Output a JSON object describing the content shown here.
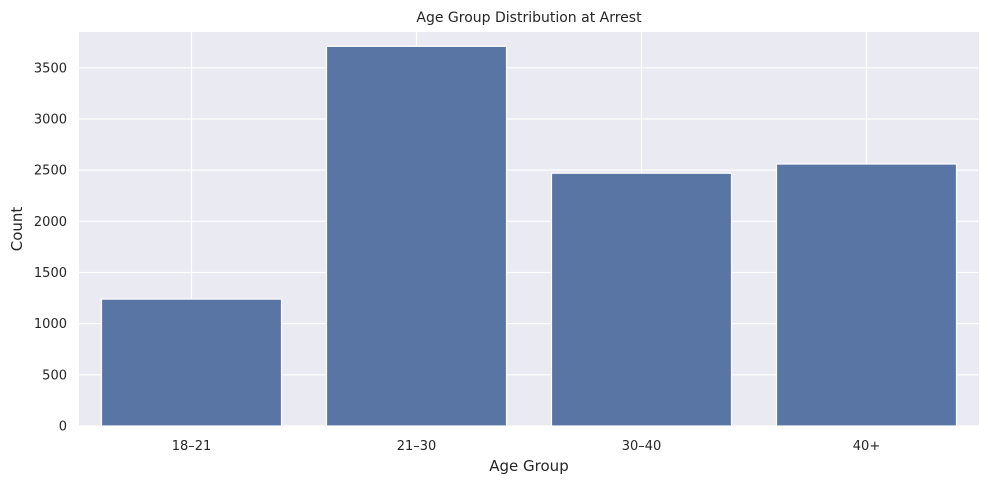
{
  "chart_data": {
    "type": "bar",
    "title": "Age Group Distribution at Arrest",
    "xlabel": "Age Group",
    "ylabel": "Count",
    "categories": [
      "18–21",
      "21–30",
      "30–40",
      "40+"
    ],
    "values": [
      1240,
      3710,
      2470,
      2560
    ],
    "ylim": [
      0,
      3850
    ],
    "yticks": [
      0,
      500,
      1000,
      1500,
      2000,
      2500,
      3000,
      3500
    ],
    "grid": true,
    "bar_color": "#5975a4",
    "background_color": "#eaeaf2",
    "grid_color": "#ffffff"
  }
}
